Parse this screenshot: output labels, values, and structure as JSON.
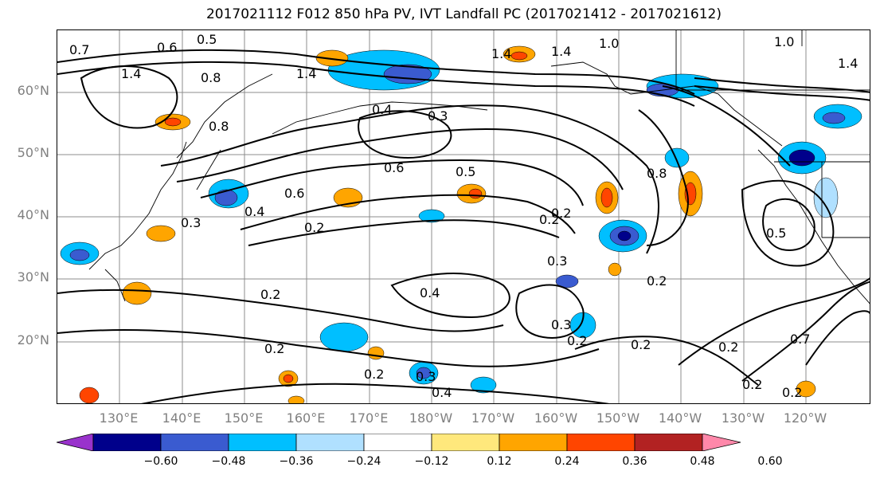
{
  "title": "2017021112 F012 850 hPa PV, IVT Landfall PC (2017021412 - 2017021612)",
  "lat_labels": [
    "60°N",
    "50°N",
    "40°N",
    "30°N",
    "20°N"
  ],
  "lon_labels": [
    "130°E",
    "140°E",
    "150°E",
    "160°E",
    "170°E",
    "180°W",
    "170°W",
    "160°W",
    "150°W",
    "140°W",
    "130°W",
    "120°W"
  ],
  "colorbar": {
    "ticks": [
      "−0.60",
      "−0.48",
      "−0.36",
      "−0.24",
      "−0.12",
      "0.12",
      "0.24",
      "0.36",
      "0.48",
      "0.60"
    ],
    "colors": [
      "#9932cc",
      "#00008b",
      "#3a5bd0",
      "#00bfff",
      "#b0e0ff",
      "#ffffff",
      "#ffe87c",
      "#ffa500",
      "#ff4500",
      "#b22222",
      "#ff88aa"
    ]
  },
  "contour_labels": [
    "0.7",
    "0.6",
    "0.5",
    "0.8",
    "1.4",
    "1.4",
    "1.0",
    "0.4",
    "0.3",
    "1.4",
    "1.4",
    "1.0",
    "0.8",
    "0.5",
    "0.6",
    "0.6",
    "0.4",
    "0.2",
    "0.2",
    "0.3",
    "0.8",
    "0.2",
    "0.3",
    "0.4",
    "0.2",
    "0.3",
    "0.2",
    "0.2",
    "0.2",
    "0.3",
    "0.2",
    "0.4",
    "0.5",
    "0.2",
    "0.7",
    "0.2",
    "0.2",
    "0.2",
    "1.4",
    "0.2"
  ],
  "fill_colors": {
    "neg_strong": "#3a5bd0",
    "neg_deep": "#00008b",
    "neg_mid": "#00bfff",
    "neg_weak": "#b0e0ff",
    "pos_weak": "#ffe87c",
    "pos_mid": "#ffa500",
    "pos_strong": "#ff4500",
    "pos_max": "#b22222"
  }
}
